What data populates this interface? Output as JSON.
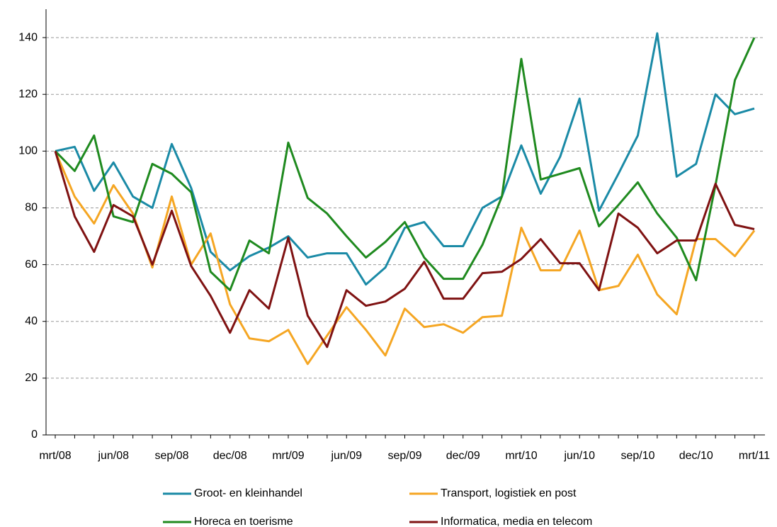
{
  "chart_data": {
    "type": "line",
    "categories": [
      "mrt/08",
      null,
      null,
      "jun/08",
      null,
      null,
      "sep/08",
      null,
      null,
      "dec/08",
      null,
      null,
      "mrt/09",
      null,
      null,
      "jun/09",
      null,
      null,
      "sep/09",
      null,
      null,
      "dec/09",
      null,
      null,
      "mrt/10",
      null,
      null,
      "jun/10",
      null,
      null,
      "sep/10",
      null,
      null,
      "dec/10",
      null,
      null,
      "mrt/11"
    ],
    "series": [
      {
        "name": "Groot- en kleinhandel",
        "color": "#1a8aa6",
        "values": [
          100,
          101.5,
          86,
          96,
          84,
          80,
          102.5,
          87,
          64.5,
          58,
          63,
          66,
          70,
          62.5,
          64,
          64,
          53,
          59,
          73,
          75,
          66.5,
          66.5,
          80,
          84,
          102,
          85,
          98,
          118.5,
          79,
          92,
          105.5,
          141.5,
          91,
          95.5,
          120,
          113,
          115
        ]
      },
      {
        "name": "Transport, logistiek en post",
        "color": "#f5a623",
        "values": [
          100,
          84,
          74.5,
          88,
          78,
          59,
          84,
          60,
          71,
          46,
          34,
          33,
          37,
          25,
          35,
          45,
          37,
          28,
          44.5,
          38,
          39,
          36,
          41.5,
          42,
          73,
          58,
          58,
          72,
          51,
          52.5,
          63.5,
          49.5,
          42.5,
          69,
          69,
          63,
          72
        ]
      },
      {
        "name": "Horeca en toerisme",
        "color": "#1f8a1f",
        "values": [
          100,
          93,
          105.5,
          77,
          75,
          95.5,
          92,
          85.5,
          57.5,
          51,
          68.5,
          64,
          103,
          83.5,
          78,
          70,
          62.5,
          68,
          75,
          62.5,
          55,
          55,
          67,
          84,
          132.5,
          90,
          92,
          94,
          73.5,
          81,
          89,
          78,
          69.5,
          54.5,
          88,
          125,
          140
        ]
      },
      {
        "name": "Informatica, media en telecom",
        "color": "#7f1212",
        "values": [
          100,
          77,
          64.5,
          81,
          77,
          60,
          79,
          59.5,
          49,
          36,
          51,
          44.5,
          69.5,
          42,
          31,
          51,
          45.5,
          47,
          51.5,
          61,
          48,
          48,
          57,
          57.5,
          62,
          69,
          60.5,
          60.5,
          51,
          78,
          73,
          64,
          68.5,
          68.5,
          88.5,
          74,
          72.5
        ]
      }
    ],
    "ylim": [
      0,
      150
    ],
    "yticks": [
      0,
      20,
      40,
      60,
      80,
      100,
      120,
      140
    ],
    "grid": true,
    "legend": "bottom"
  }
}
